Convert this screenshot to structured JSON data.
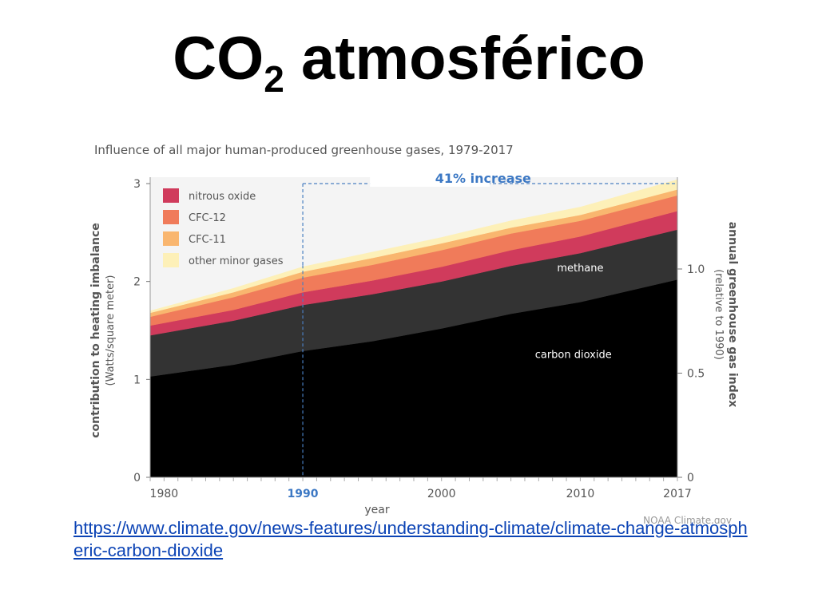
{
  "slide": {
    "title_main": "CO",
    "title_sub": "2",
    "title_rest": " atmosférico",
    "link_text": "https://www.climate.gov/news-features/understanding-climate/climate-change-atmospheric-carbon-dioxide"
  },
  "chart_data": {
    "type": "area",
    "stacked": true,
    "title": "Influence of all major human-produced greenhouse gases, 1979-2017",
    "xlabel": "year",
    "ylabel": "contribution to heating imbalance",
    "ylabel_units": "(Watts/square meter)",
    "y2label": "annual greenhouse gas index",
    "y2label_units": "(relative to 1990)",
    "credit": "NOAA Climate.gov",
    "annotation": "41% increase",
    "reference_year": 1990,
    "xlim": [
      1979,
      2017
    ],
    "ylim": [
      0,
      3
    ],
    "y2lim": [
      0,
      1.41
    ],
    "x_ticks": [
      1980,
      1990,
      2000,
      2010,
      2017
    ],
    "x_tick_labels": [
      "1980",
      "1990",
      "2000",
      "2010",
      "2017"
    ],
    "y_ticks": [
      0,
      1,
      2,
      3
    ],
    "y_tick_labels": [
      "0",
      "1",
      "2",
      "3"
    ],
    "y2_ticks": [
      0,
      0.5,
      1.0
    ],
    "y2_tick_labels": [
      "0",
      "0.5",
      "1.0"
    ],
    "grid": false,
    "legend_position": "top-left",
    "legend": [
      "nitrous oxide",
      "CFC-12",
      "CFC-11",
      "other minor gases"
    ],
    "x": [
      1979,
      1985,
      1990,
      1995,
      2000,
      2005,
      2010,
      2017
    ],
    "series": [
      {
        "name": "carbon dioxide",
        "color": "#000000",
        "values": [
          1.03,
          1.15,
          1.29,
          1.39,
          1.52,
          1.67,
          1.79,
          2.02
        ]
      },
      {
        "name": "methane",
        "color": "#333333",
        "values": [
          0.42,
          0.45,
          0.47,
          0.48,
          0.48,
          0.49,
          0.5,
          0.51
        ]
      },
      {
        "name": "nitrous oxide",
        "color": "#d03b5c",
        "values": [
          0.1,
          0.11,
          0.13,
          0.14,
          0.15,
          0.16,
          0.17,
          0.19
        ]
      },
      {
        "name": "CFC-12",
        "color": "#f07b5a",
        "values": [
          0.09,
          0.13,
          0.15,
          0.16,
          0.17,
          0.17,
          0.16,
          0.16
        ]
      },
      {
        "name": "CFC-11",
        "color": "#f9b66f",
        "values": [
          0.04,
          0.05,
          0.06,
          0.07,
          0.07,
          0.06,
          0.06,
          0.06
        ]
      },
      {
        "name": "other minor gases",
        "color": "#fdf0b8",
        "values": [
          0.02,
          0.04,
          0.05,
          0.06,
          0.06,
          0.07,
          0.08,
          0.1
        ]
      }
    ],
    "area_labels": [
      "methane",
      "carbon dioxide"
    ]
  }
}
